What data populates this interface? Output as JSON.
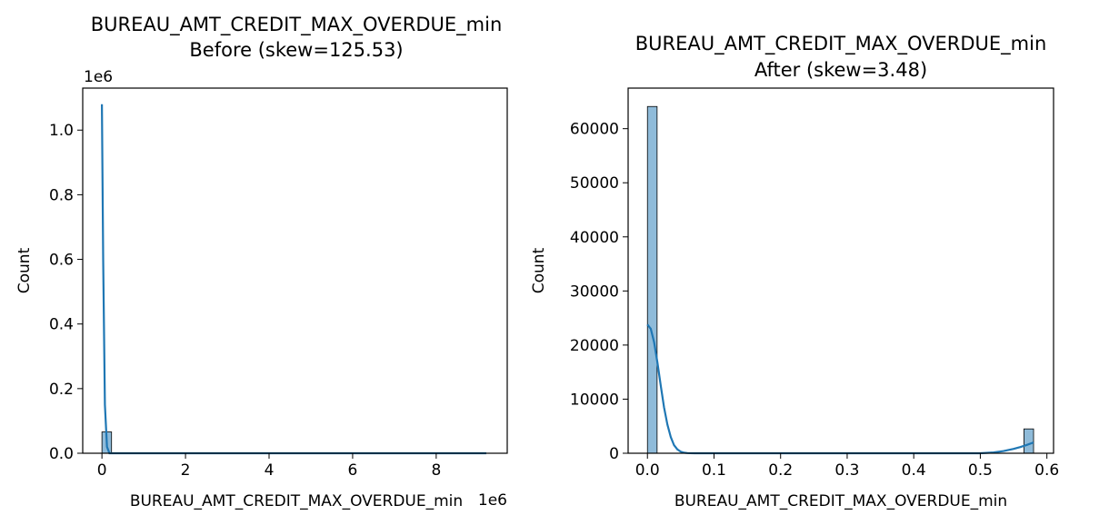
{
  "chart_data": [
    {
      "type": "histogram",
      "title_line1": "BUREAU_AMT_CREDIT_MAX_OVERDUE_min",
      "title_line2": "Before (skew=125.53)",
      "xlabel": "BUREAU_AMT_CREDIT_MAX_OVERDUE_min",
      "ylabel": "Count",
      "x_offset_text": "1e6",
      "y_offset_text": "1e6",
      "xlim": [
        -0.46,
        9.7
      ],
      "ylim": [
        0,
        1.13
      ],
      "xticks": [
        0,
        2,
        4,
        6,
        8
      ],
      "xtick_labels": [
        "0",
        "2",
        "4",
        "6",
        "8"
      ],
      "yticks": [
        0,
        0.2,
        0.4,
        0.6,
        0.8,
        1.0
      ],
      "ytick_labels": [
        "0.0",
        "0.2",
        "0.4",
        "0.6",
        "0.8",
        "1.0"
      ],
      "bins": [
        {
          "x0": 0.0,
          "x1": 0.23,
          "count": 0.066
        }
      ],
      "flat_bins_to": 9.2,
      "kde": [
        [
          0.0,
          1.08
        ],
        [
          0.03,
          0.6
        ],
        [
          0.07,
          0.15
        ],
        [
          0.12,
          0.02
        ],
        [
          0.18,
          0.0
        ],
        [
          9.2,
          0.0
        ]
      ],
      "bar_color": "#1f77b4",
      "line_color": "#1f77b4"
    },
    {
      "type": "histogram",
      "title_line1": "BUREAU_AMT_CREDIT_MAX_OVERDUE_min",
      "title_line2": "After (skew=3.48)",
      "xlabel": "BUREAU_AMT_CREDIT_MAX_OVERDUE_min",
      "ylabel": "Count",
      "xlim": [
        -0.029,
        0.61
      ],
      "ylim": [
        0,
        67500
      ],
      "xticks": [
        0.0,
        0.1,
        0.2,
        0.3,
        0.4,
        0.5,
        0.6
      ],
      "xtick_labels": [
        "0.0",
        "0.1",
        "0.2",
        "0.3",
        "0.4",
        "0.5",
        "0.6"
      ],
      "yticks": [
        0,
        10000,
        20000,
        30000,
        40000,
        50000,
        60000
      ],
      "ytick_labels": [
        "0",
        "10000",
        "20000",
        "30000",
        "40000",
        "50000",
        "60000"
      ],
      "bins": [
        {
          "x0": 0.0,
          "x1": 0.0145,
          "count": 64100
        },
        {
          "x0": 0.5655,
          "x1": 0.58,
          "count": 4500
        }
      ],
      "flat_bins_to": 0.58,
      "kde": [
        [
          0.0,
          23800
        ],
        [
          0.005,
          23000
        ],
        [
          0.01,
          20500
        ],
        [
          0.015,
          16800
        ],
        [
          0.02,
          12500
        ],
        [
          0.025,
          8500
        ],
        [
          0.03,
          5300
        ],
        [
          0.035,
          3000
        ],
        [
          0.04,
          1500
        ],
        [
          0.045,
          700
        ],
        [
          0.05,
          280
        ],
        [
          0.055,
          100
        ],
        [
          0.06,
          30
        ],
        [
          0.07,
          0
        ],
        [
          0.5,
          0
        ],
        [
          0.52,
          150
        ],
        [
          0.535,
          400
        ],
        [
          0.55,
          800
        ],
        [
          0.56,
          1150
        ],
        [
          0.57,
          1550
        ],
        [
          0.58,
          2000
        ]
      ],
      "bar_color": "#1f77b4",
      "line_color": "#1f77b4"
    }
  ]
}
